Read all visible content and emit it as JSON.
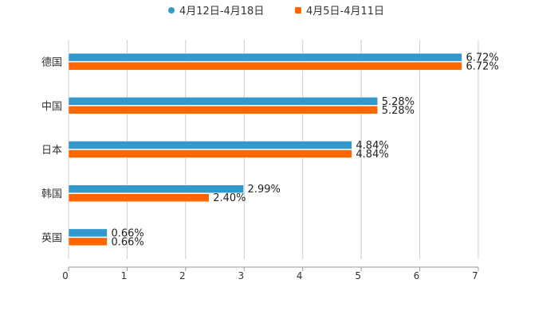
{
  "chart_data": {
    "type": "bar",
    "orientation": "horizontal",
    "title": "",
    "xlabel": "",
    "ylabel": "",
    "categories": [
      "德国",
      "中国",
      "日本",
      "韩国",
      "英国"
    ],
    "series": [
      {
        "name": "4月12日-4月18日",
        "color": "#3399cc",
        "values": [
          6.72,
          5.28,
          4.84,
          2.99,
          0.66
        ],
        "labels": [
          "6.72%",
          "5.28%",
          "4.84%",
          "2.99%",
          "0.66%"
        ]
      },
      {
        "name": "4月5日-4月11日",
        "color": "#ff6600",
        "values": [
          6.72,
          5.28,
          4.84,
          2.4,
          0.66
        ],
        "labels": [
          "6.72%",
          "5.28%",
          "4.84%",
          "2.40%",
          "0.66%"
        ]
      }
    ],
    "xlim": [
      0,
      7
    ],
    "xticks": [
      "0",
      "1",
      "2",
      "3",
      "4",
      "5",
      "6",
      "7"
    ],
    "grid": true,
    "legend_position": "top-center"
  }
}
